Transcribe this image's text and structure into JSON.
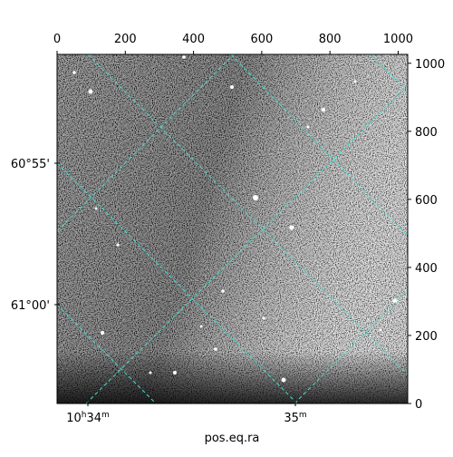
{
  "chart_data": {
    "type": "image",
    "xlabel": "pos.eq.ra",
    "xlim": [
      0,
      1028
    ],
    "xticks": [
      0,
      200,
      400,
      600,
      800,
      1000
    ],
    "ylim": [
      0,
      1026
    ],
    "yticks": [
      0,
      200,
      400,
      600,
      800,
      1000
    ],
    "wcs_yticks": [
      "60°55'",
      "61°00'"
    ],
    "wcs_xticks": [
      [
        "10",
        "h",
        "34",
        "m"
      ],
      [
        "35",
        "m"
      ]
    ],
    "grid_color": "#40e0d0"
  }
}
